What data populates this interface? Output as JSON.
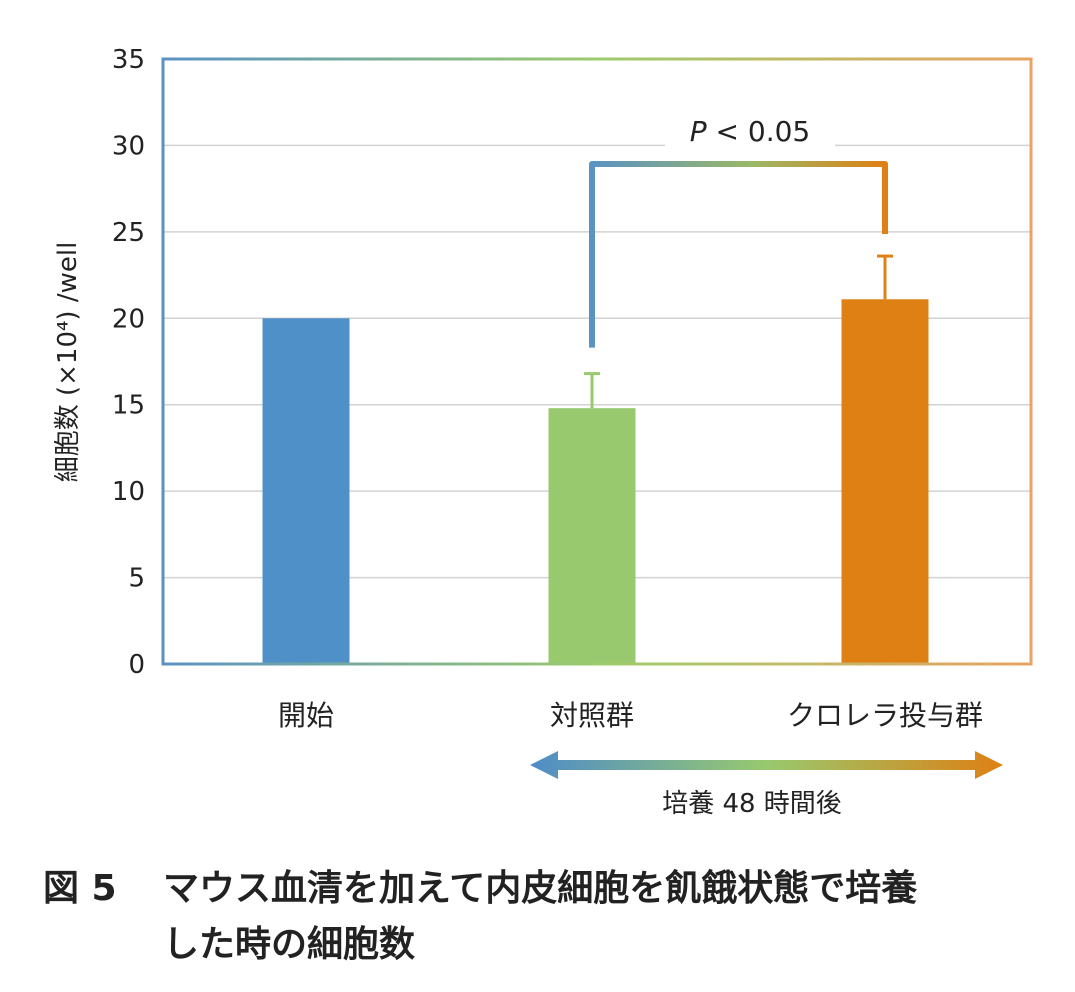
{
  "chart_data": {
    "type": "bar",
    "categories": [
      "開始",
      "対照群",
      "クロレラ投与群"
    ],
    "values": [
      20,
      14.8,
      21.1
    ],
    "error": [
      null,
      2.0,
      2.5
    ],
    "colors": [
      "#5090c8",
      "#98c96e",
      "#de8014"
    ],
    "ylabel": "細胞数 (×10⁴) /well",
    "ylim": [
      0,
      35
    ],
    "yticks": [
      0,
      5,
      10,
      15,
      20,
      25,
      30,
      35
    ],
    "grid": true,
    "significance": {
      "from": 1,
      "to": 2,
      "label_italic": "P",
      "label_rest": " < 0.05"
    },
    "period_arrow": {
      "label": "培養 48 時間後",
      "from": 1,
      "to": 2
    }
  },
  "caption": {
    "fig_label": "図 5",
    "line1": "マウス血清を加えて内皮細胞を飢餓状態で培養",
    "line2": "した時の細胞数"
  }
}
